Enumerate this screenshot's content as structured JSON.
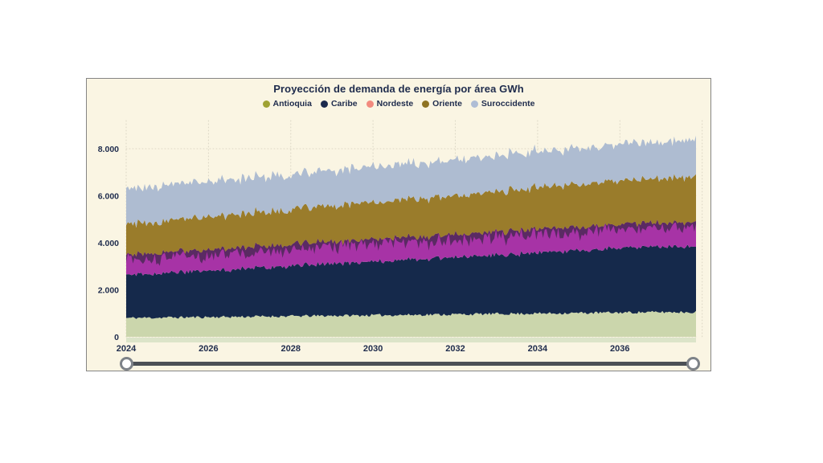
{
  "panel": {
    "background": "#FAF5E3",
    "border_color": "#858585",
    "text_color": "#1E2B4C"
  },
  "chart_data": {
    "type": "area",
    "stacked": true,
    "title": "Proyección de demanda de energía por área GWh",
    "xlabel": "",
    "ylabel": "",
    "units": "GWh",
    "grid": "dotted",
    "grid_color": "#DDD8C6",
    "legend_position": "top",
    "x_range": [
      2024,
      2037.85
    ],
    "ylim": [
      0,
      8600
    ],
    "years": [
      2024,
      2025,
      2026,
      2027,
      2028,
      2029,
      2030,
      2031,
      2032,
      2033,
      2034,
      2035,
      2036,
      2037
    ],
    "x_ticks": [
      {
        "value": 2024,
        "label": "2024"
      },
      {
        "value": 2026,
        "label": "2026"
      },
      {
        "value": 2028,
        "label": "2028"
      },
      {
        "value": 2030,
        "label": "2030"
      },
      {
        "value": 2032,
        "label": "2032"
      },
      {
        "value": 2034,
        "label": "2034"
      },
      {
        "value": 2036,
        "label": "2036"
      }
    ],
    "x_grid_years": [
      2024,
      2026,
      2028,
      2030,
      2032,
      2034,
      2036,
      2038
    ],
    "y_ticks": [
      {
        "value": 0,
        "label": "0"
      },
      {
        "value": 2000,
        "label": "2.000"
      },
      {
        "value": 4000,
        "label": "4.000"
      },
      {
        "value": 6000,
        "label": "6.000"
      },
      {
        "value": 8000,
        "label": "8.000"
      }
    ],
    "series": [
      {
        "name": "Antioquia",
        "legend_color": "#9FA233",
        "fill": "#CBD6AC",
        "values": [
          800,
          819,
          838,
          858,
          877,
          896,
          915,
          935,
          954,
          973,
          992,
          1012,
          1031,
          1050
        ]
      },
      {
        "name": "Caribe",
        "legend_color": "#1B2A4D",
        "fill": "#15294B",
        "values": [
          1830,
          1905,
          1980,
          2055,
          2130,
          2205,
          2280,
          2350,
          2425,
          2500,
          2575,
          2650,
          2725,
          2800
        ]
      },
      {
        "name": "Nordeste",
        "legend_color": "#F28A7E",
        "fill": "#A733A6",
        "values": [
          870,
          883,
          896,
          909,
          922,
          935,
          948,
          961,
          974,
          987,
          1000,
          1014,
          1027,
          1040
        ]
      },
      {
        "name": "Oriente",
        "legend_color": "#8E7322",
        "fill": "#9A7C2B",
        "values": [
          1280,
          1328,
          1376,
          1424,
          1472,
          1520,
          1568,
          1616,
          1664,
          1712,
          1760,
          1808,
          1856,
          1905
        ]
      },
      {
        "name": "Suroccidente",
        "legend_color": "#AFBDD5",
        "fill": "#AEBCD1",
        "values": [
          1490,
          1494,
          1498,
          1502,
          1506,
          1509,
          1513,
          1517,
          1521,
          1525,
          1529,
          1532,
          1536,
          1540
        ]
      }
    ],
    "noise_amplitudes": [
      60,
      80,
      80,
      90,
      110
    ],
    "overlap_band": {
      "series_index": 2,
      "color": "#5A2A63",
      "base": 240,
      "noise": 240
    },
    "baseline_strip_color": "#DCE4C9"
  },
  "slider": {
    "type": "x-range-slider",
    "track_color": "#4C5156",
    "handle_fill": "#FFFFFF",
    "handle_border": "#7D8288"
  }
}
